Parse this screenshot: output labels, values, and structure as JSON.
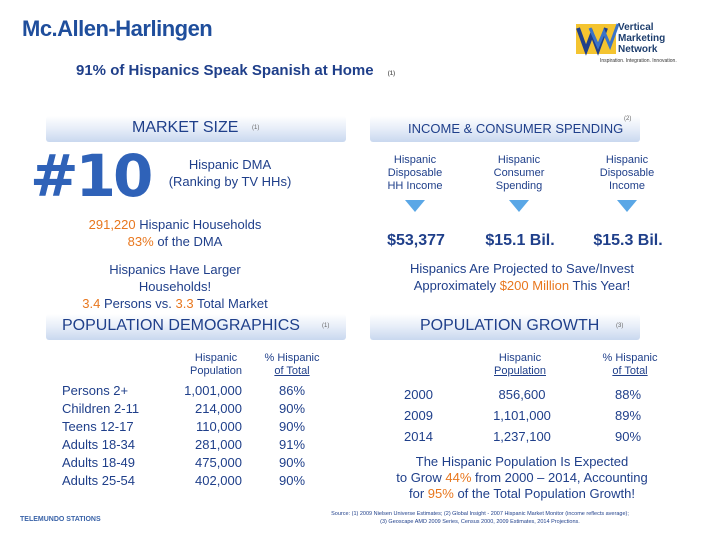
{
  "title": "Mc.Allen-Harlingen",
  "subtitle": "91% of Hispanics Speak Spanish at Home",
  "subtitle_note": "(1)",
  "logo": {
    "line1": "Vertical",
    "line2": "Marketing",
    "line3": "Network",
    "tagline": "Inspiration. Integration. Innovation."
  },
  "market_size": {
    "header": "MARKET SIZE",
    "note": "(1)",
    "rank": "#10",
    "rank_line1": "Hispanic DMA",
    "rank_line2": "(Ranking by TV HHs)",
    "households_value": "291,220",
    "households_text": "Hispanic Households",
    "pct_value": "83%",
    "pct_text": "of the DMA",
    "larger_line1": "Hispanics Have Larger",
    "larger_line2": "Households!",
    "persons_hisp": "3.4",
    "persons_mid": "Persons vs.",
    "persons_total": "3.3",
    "persons_tail": "Total Market"
  },
  "income": {
    "header": "INCOME & CONSUMER SPENDING",
    "note": "(2)",
    "columns": [
      {
        "label_l1": "Hispanic",
        "label_l2": "Disposable",
        "label_l3": "HH Income",
        "value": "$53,377"
      },
      {
        "label_l1": "Hispanic",
        "label_l2": "Consumer",
        "label_l3": "Spending",
        "value": "$15.1 Bil."
      },
      {
        "label_l1": "Hispanic",
        "label_l2": "Disposable",
        "label_l3": "Income",
        "value": "$15.3 Bil."
      }
    ],
    "save_line1": "Hispanics Are Projected to Save/Invest",
    "save_pre": "Approximately",
    "save_value": "$200 Million",
    "save_post": "This Year!"
  },
  "population_demographics": {
    "header": "POPULATION DEMOGRAPHICS",
    "note": "(1)",
    "col1_l1": "Hispanic",
    "col1_l2": "Population",
    "col2_l1": "% Hispanic",
    "col2_l2": "of Total",
    "rows": [
      {
        "label": "Persons 2+",
        "population": "1,001,000",
        "pct": "86%"
      },
      {
        "label": "Children 2-11",
        "population": "214,000",
        "pct": "90%"
      },
      {
        "label": "Teens 12-17",
        "population": "110,000",
        "pct": "90%"
      },
      {
        "label": "Adults 18-34",
        "population": "281,000",
        "pct": "91%"
      },
      {
        "label": "Adults 18-49",
        "population": "475,000",
        "pct": "90%"
      },
      {
        "label": "Adults 25-54",
        "population": "402,000",
        "pct": "90%"
      }
    ]
  },
  "population_growth": {
    "header": "POPULATION GROWTH",
    "note": "(3)",
    "col1_l1": "Hispanic",
    "col1_l2": "Population",
    "col2_l1": "% Hispanic",
    "col2_l2": "of Total",
    "rows": [
      {
        "year": "2000",
        "population": "856,600",
        "pct": "88%"
      },
      {
        "year": "2009",
        "population": "1,101,000",
        "pct": "89%"
      },
      {
        "year": "2014",
        "population": "1,237,100",
        "pct": "90%"
      }
    ],
    "growth_line1": "The Hispanic Population Is Expected",
    "growth_pre": "to Grow",
    "growth_value": "44%",
    "growth_mid": "from 2000 – 2014, Accounting",
    "growth_pre2": "for",
    "growth_value2": "95%",
    "growth_post": "of the Total Population Growth!"
  },
  "source_line1": "Source: (1) 2009 Nielsen Universe Estimates; (2) Global Insight - 2007 Hispanic Market Monitor (income reflects average);",
  "source_line2": "(3) Geoscape AMD 2009 Series, Census 2000, 2009 Estimates, 2014 Projections.",
  "footer_brand": "TELEMUNDO STATIONS"
}
